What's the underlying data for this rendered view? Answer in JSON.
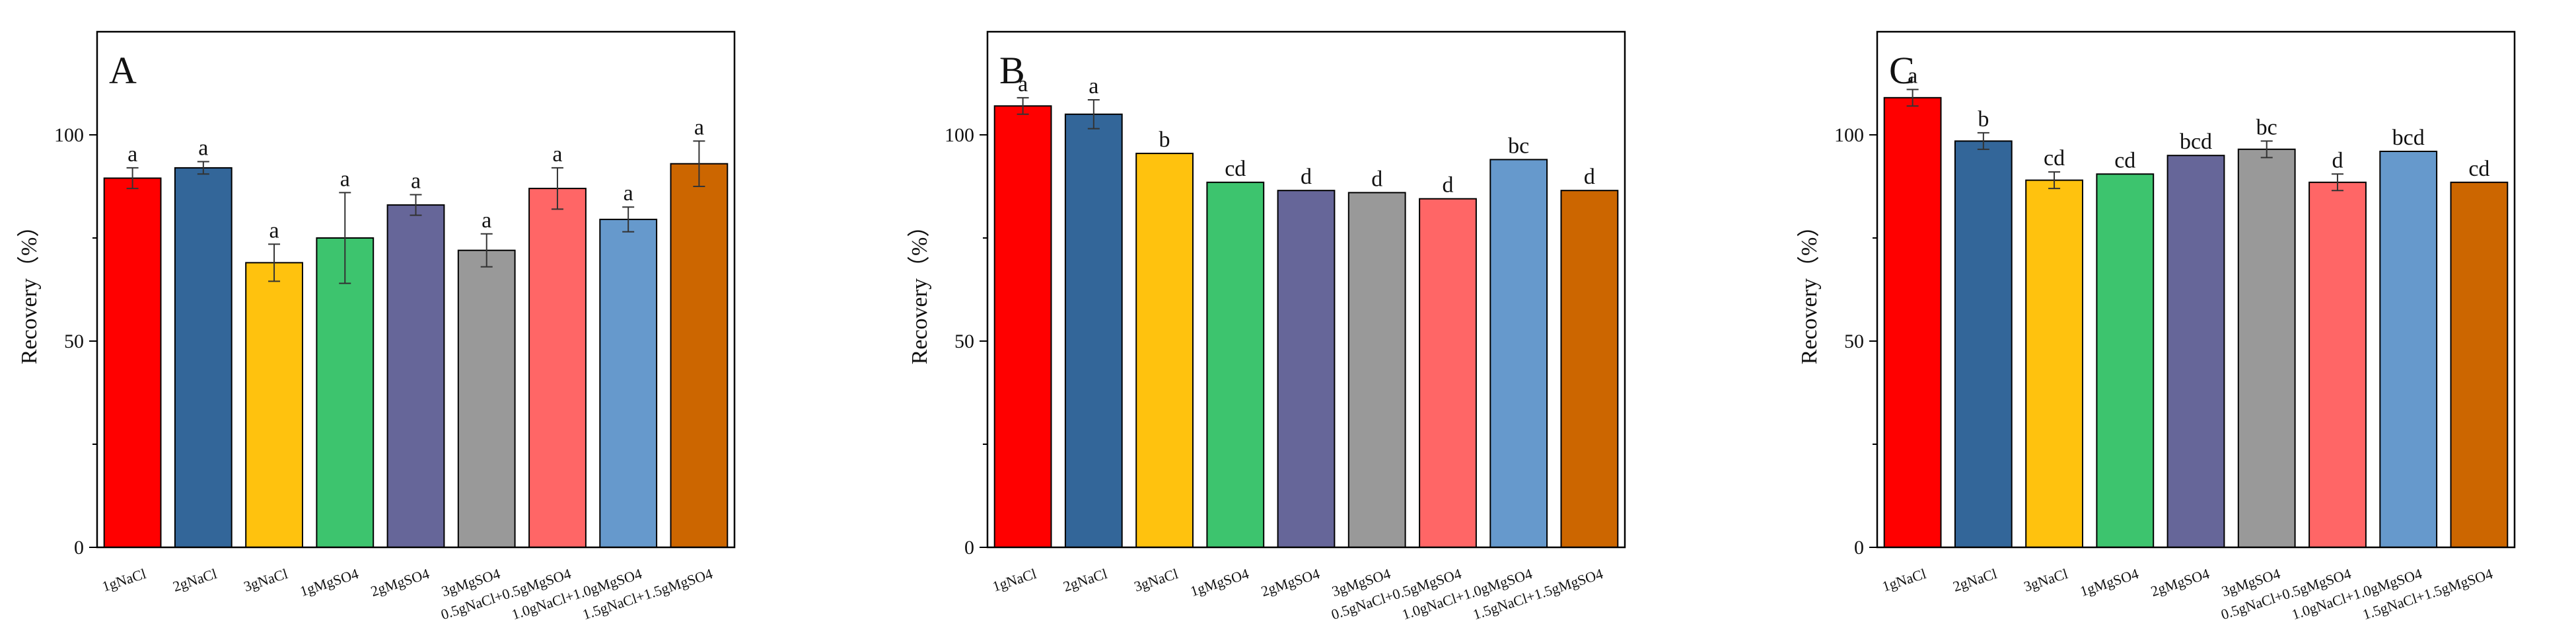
{
  "chart_data": [
    {
      "type": "bar",
      "panel_label": "A",
      "ylabel": "Recovery（%）",
      "ylim": [
        0,
        125
      ],
      "yticks": [
        0,
        50,
        100
      ],
      "categories": [
        "1gNaCl",
        "2gNaCl",
        "3gNaCl",
        "1gMgSO4",
        "2gMgSO4",
        "3gMgSO4",
        "0.5gNaCl+0.5gMgSO4",
        "1.0gNaCl+1.0gMgSO4",
        "1.5gNaCl+1.5gMgSO4"
      ],
      "values": [
        89.5,
        92,
        69,
        75,
        83,
        72,
        87,
        79.5,
        93
      ],
      "errors": [
        2.5,
        1.5,
        4.5,
        11,
        2.5,
        4,
        5,
        3,
        5.5
      ],
      "significance": [
        "a",
        "a",
        "a",
        "a",
        "a",
        "a",
        "a",
        "a",
        "a"
      ]
    },
    {
      "type": "bar",
      "panel_label": "B",
      "ylabel": "Recovery（%）",
      "ylim": [
        0,
        125
      ],
      "yticks": [
        0,
        50,
        100
      ],
      "categories": [
        "1gNaCl",
        "2gNaCl",
        "3gNaCl",
        "1gMgSO4",
        "2gMgSO4",
        "3gMgSO4",
        "0.5gNaCl+0.5gMgSO4",
        "1.0gNaCl+1.0gMgSO4",
        "1.5gNaCl+1.5gMgSO4"
      ],
      "values": [
        107,
        105,
        95.5,
        88.5,
        86.5,
        86,
        84.5,
        94,
        86.5
      ],
      "errors": [
        2,
        3.5,
        0,
        0,
        0,
        0,
        0,
        0,
        0
      ],
      "significance": [
        "a",
        "a",
        "b",
        "cd",
        "d",
        "d",
        "d",
        "bc",
        "d"
      ]
    },
    {
      "type": "bar",
      "panel_label": "C",
      "ylabel": "Recovery（%）",
      "ylim": [
        0,
        125
      ],
      "yticks": [
        0,
        50,
        100
      ],
      "categories": [
        "1gNaCl",
        "2gNaCl",
        "3gNaCl",
        "1gMgSO4",
        "2gMgSO4",
        "3gMgSO4",
        "0.5gNaCl+0.5gMgSO4",
        "1.0gNaCl+1.0gMgSO4",
        "1.5gNaCl+1.5gMgSO4"
      ],
      "values": [
        109,
        98.5,
        89,
        90.5,
        95,
        96.5,
        88.5,
        96,
        88.5
      ],
      "errors": [
        2,
        2,
        2,
        0,
        0,
        2,
        2,
        0,
        0
      ],
      "significance": [
        "a",
        "b",
        "cd",
        "cd",
        "bcd",
        "bc",
        "d",
        "bcd",
        "cd"
      ]
    }
  ],
  "bar_colors": [
    "#ff0000",
    "#336699",
    "#ffc20e",
    "#3dc46e",
    "#666699",
    "#999999",
    "#ff6666",
    "#6699cc",
    "#cc6600"
  ]
}
